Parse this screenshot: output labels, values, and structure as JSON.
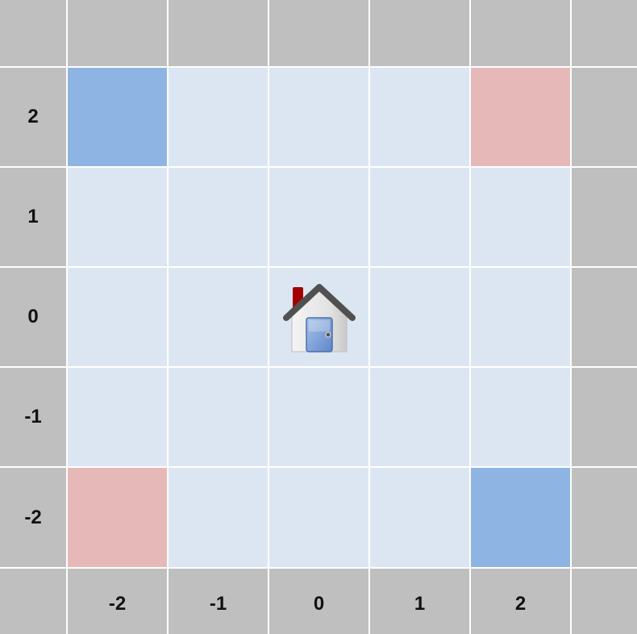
{
  "grid": {
    "columns": [
      "-2",
      "-1",
      "0",
      "1",
      "2"
    ],
    "rows": [
      "2",
      "1",
      "0",
      "-1",
      "-2"
    ],
    "colors": {
      "header": "#bfbfbf",
      "default_cell": "#dce6f2",
      "blue_cell": "#8eb4e3",
      "red_cell": "#e6b9b8",
      "gridline": "#ffffff"
    },
    "highlighted_cells": [
      {
        "col": "-2",
        "row": "2",
        "color": "blue"
      },
      {
        "col": "2",
        "row": "2",
        "color": "red"
      },
      {
        "col": "-2",
        "row": "-2",
        "color": "red"
      },
      {
        "col": "2",
        "row": "-2",
        "color": "blue"
      }
    ]
  },
  "house": {
    "icon": "house-icon",
    "col": "0",
    "row": "0"
  }
}
